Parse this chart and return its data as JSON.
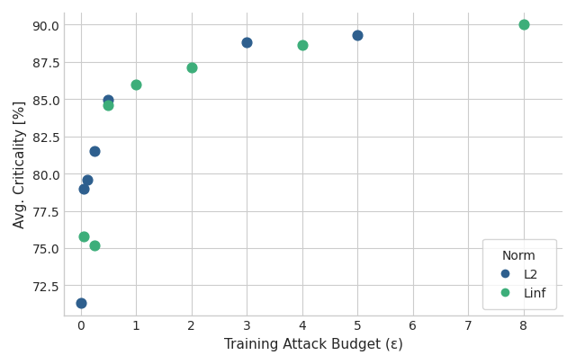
{
  "title": "",
  "xlabel": "Training Attack Budget (ε)",
  "ylabel": "Avg. Criticality [%]",
  "xlim": [
    -0.3,
    8.7
  ],
  "ylim": [
    70.5,
    90.8
  ],
  "yticks": [
    72.5,
    75.0,
    77.5,
    80.0,
    82.5,
    85.0,
    87.5,
    90.0
  ],
  "xticks": [
    0,
    1,
    2,
    3,
    4,
    5,
    6,
    7,
    8
  ],
  "l2_x": [
    0.0,
    0.06,
    0.12,
    0.25,
    0.5,
    3.0,
    5.0
  ],
  "l2_y": [
    71.3,
    79.0,
    79.6,
    81.5,
    84.95,
    88.8,
    89.3
  ],
  "linf_x": [
    0.06,
    0.25,
    0.5,
    1.0,
    2.0,
    4.0,
    8.0
  ],
  "linf_y": [
    75.8,
    75.2,
    84.6,
    86.0,
    87.15,
    88.65,
    90.0
  ],
  "l2_color": "#2e5f8e",
  "linf_color": "#3dae7a",
  "marker_size": 60,
  "legend_title": "Norm",
  "figsize": [
    6.4,
    4.06
  ],
  "dpi": 100
}
